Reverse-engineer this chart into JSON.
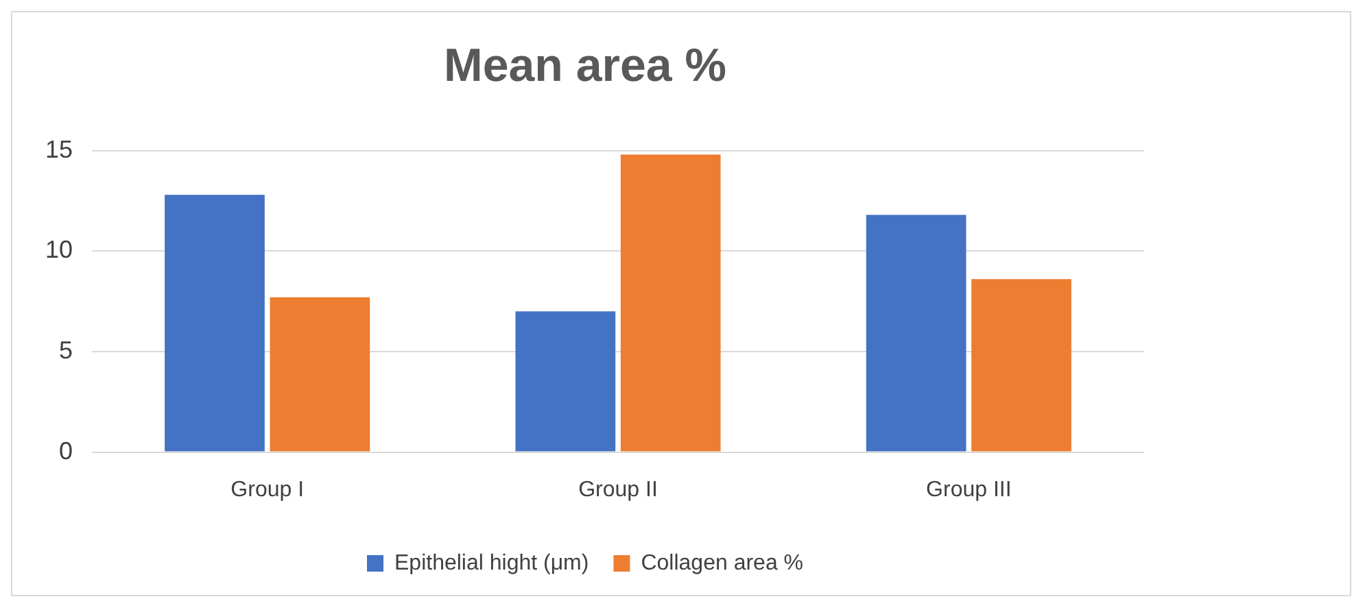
{
  "chart_data": {
    "type": "bar",
    "title": "Mean area %",
    "categories": [
      "Group I",
      "Group II",
      "Group III"
    ],
    "series": [
      {
        "name": "Epithelial hight (μm)",
        "color": "#4472c4",
        "values": [
          12.8,
          7.0,
          11.8
        ]
      },
      {
        "name": "Collagen area %",
        "color": "#ed7d31",
        "values": [
          7.7,
          14.8,
          8.6
        ]
      }
    ],
    "ylim": [
      0,
      15
    ],
    "yticks": [
      0,
      5,
      10,
      15
    ],
    "grid": "y",
    "legend": "bottom"
  }
}
